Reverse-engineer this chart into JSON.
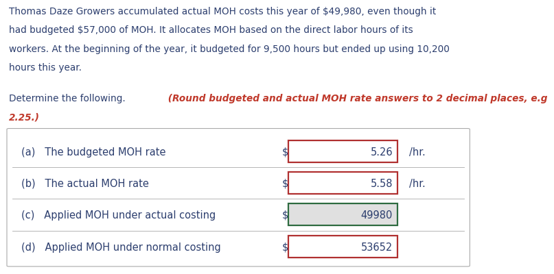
{
  "para_lines": [
    "Thomas Daze Growers accumulated actual MOH costs this year of $49,980, even though it",
    "had budgeted $57,000 of MOH. It allocates MOH based on the direct labor hours of its",
    "workers. At the beginning of the year, it budgeted for 9,500 hours but ended up using 10,200",
    "hours this year."
  ],
  "det_plain": "Determine the following.",
  "det_bold_italic": "(Round budgeted and actual MOH rate answers to 2 decimal places, e.g",
  "det_bold_italic2": "2.25.)",
  "rows": [
    {
      "label": "(a)   The budgeted MOH rate",
      "value": "5.26",
      "suffix": "/hr.",
      "box_color": "#b03030",
      "bg_color": "#ffffff"
    },
    {
      "label": "(b)   The actual MOH rate",
      "value": "5.58",
      "suffix": "/hr.",
      "box_color": "#b03030",
      "bg_color": "#ffffff"
    },
    {
      "label": "(c)   Applied MOH under actual costing",
      "value": "49980",
      "suffix": "",
      "box_color": "#2e6b40",
      "bg_color": "#e0e0e0"
    },
    {
      "label": "(d)   Applied MOH under normal costing",
      "value": "53652",
      "suffix": "",
      "box_color": "#b03030",
      "bg_color": "#ffffff"
    }
  ],
  "bg_color": "#ffffff",
  "text_color": "#2c3e6e",
  "red_color": "#c0392b",
  "border_color": "#aaaaaa",
  "body_fs": 9.8,
  "row_fs": 10.5,
  "det_fs": 9.8
}
